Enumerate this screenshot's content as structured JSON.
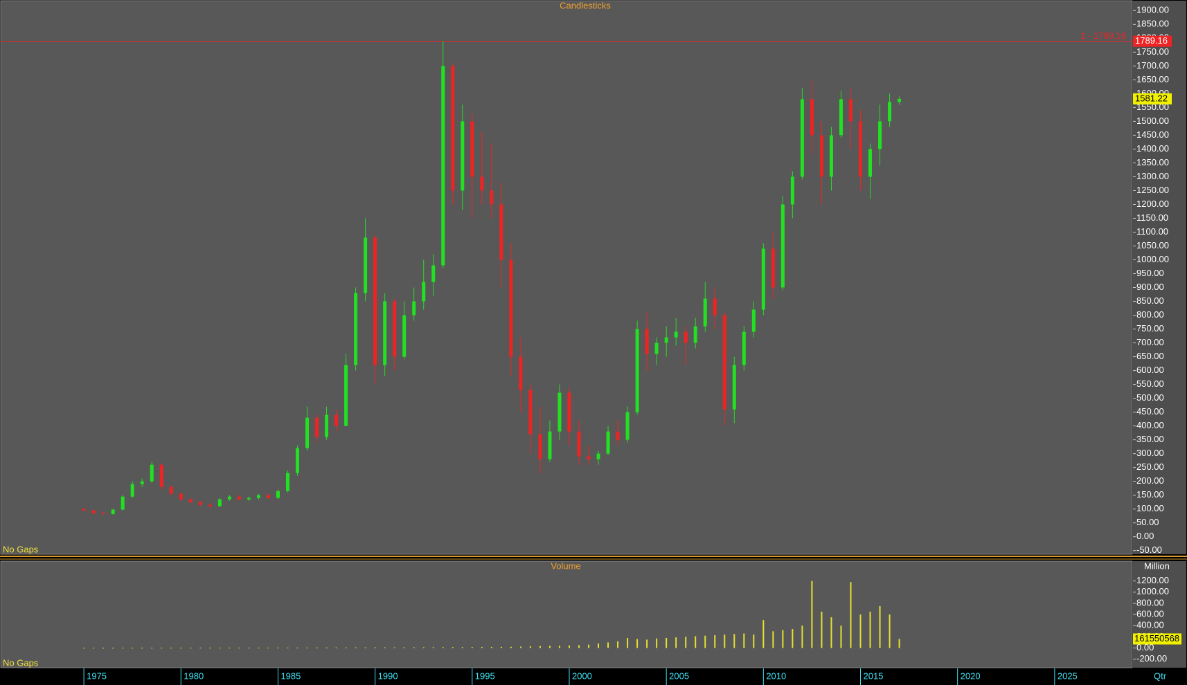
{
  "x_axis_unit": "Qtr",
  "chart_data": [
    {
      "type": "candlestick",
      "title": "Candlesticks",
      "note": "No Gaps",
      "colors": {
        "up": "#22e022",
        "down": "#ee2424"
      },
      "x": [
        1975.0,
        1975.5,
        1976.0,
        1976.5,
        1977.0,
        1977.5,
        1978.0,
        1978.5,
        1979.0,
        1979.5,
        1980.0,
        1980.5,
        1981.0,
        1981.5,
        1982.0,
        1982.5,
        1983.0,
        1983.5,
        1984.0,
        1984.5,
        1985.0,
        1985.5,
        1986.0,
        1986.5,
        1987.0,
        1987.5,
        1988.0,
        1988.5,
        1989.0,
        1989.5,
        1990.0,
        1990.5,
        1991.0,
        1991.5,
        1992.0,
        1992.5,
        1993.0,
        1993.5,
        1994.0,
        1994.5,
        1995.0,
        1995.5,
        1996.0,
        1996.5,
        1997.0,
        1997.5,
        1998.0,
        1998.5,
        1999.0,
        1999.5,
        2000.0,
        2000.5,
        2001.0,
        2001.5,
        2002.0,
        2002.5,
        2003.0,
        2003.5,
        2004.0,
        2004.5,
        2005.0,
        2005.5,
        2006.0,
        2006.5,
        2007.0,
        2007.5,
        2008.0,
        2008.5,
        2009.0,
        2009.5,
        2010.0,
        2010.5,
        2011.0,
        2011.5,
        2012.0,
        2012.5,
        2013.0,
        2013.5,
        2014.0,
        2014.5,
        2015.0,
        2015.5,
        2016.0,
        2016.5,
        2017.0
      ],
      "open": [
        100,
        95,
        85,
        82,
        98,
        145,
        190,
        200,
        260,
        180,
        155,
        135,
        125,
        115,
        110,
        135,
        145,
        135,
        140,
        150,
        140,
        165,
        230,
        320,
        430,
        360,
        440,
        400,
        620,
        880,
        1080,
        620,
        850,
        650,
        800,
        850,
        920,
        980,
        1700,
        1250,
        1500,
        1300,
        1250,
        1200,
        1000,
        650,
        530,
        370,
        280,
        380,
        520,
        380,
        290,
        280,
        300,
        380,
        350,
        450,
        750,
        660,
        700,
        720,
        740,
        700,
        760,
        860,
        800,
        460,
        620,
        740,
        820,
        1040,
        900,
        1200,
        1300,
        1580,
        1450,
        1300,
        1450,
        1580,
        1500,
        1300,
        1400,
        1500,
        1570
      ],
      "high": [
        105,
        98,
        90,
        100,
        150,
        200,
        210,
        270,
        265,
        185,
        160,
        140,
        130,
        120,
        140,
        150,
        150,
        145,
        155,
        155,
        170,
        240,
        330,
        470,
        440,
        470,
        460,
        660,
        900,
        1150,
        1090,
        880,
        860,
        850,
        900,
        1000,
        1020,
        1789.16,
        1710,
        1560,
        1530,
        1460,
        1420,
        1280,
        1060,
        720,
        550,
        470,
        420,
        550,
        540,
        420,
        330,
        310,
        400,
        420,
        470,
        780,
        810,
        720,
        760,
        790,
        760,
        790,
        920,
        900,
        810,
        650,
        760,
        850,
        1060,
        1100,
        1230,
        1320,
        1620,
        1650,
        1500,
        1480,
        1610,
        1620,
        1540,
        1420,
        1560,
        1600,
        1590
      ],
      "low": [
        90,
        80,
        78,
        80,
        95,
        140,
        180,
        195,
        170,
        150,
        130,
        120,
        110,
        105,
        108,
        130,
        130,
        130,
        135,
        135,
        135,
        160,
        220,
        310,
        340,
        350,
        380,
        400,
        600,
        850,
        550,
        580,
        600,
        640,
        780,
        820,
        870,
        970,
        1200,
        1180,
        1150,
        1200,
        1150,
        900,
        580,
        450,
        300,
        230,
        270,
        350,
        330,
        260,
        260,
        260,
        295,
        330,
        340,
        440,
        600,
        620,
        650,
        690,
        620,
        680,
        740,
        750,
        400,
        410,
        600,
        720,
        800,
        860,
        890,
        1150,
        1290,
        1380,
        1200,
        1250,
        1440,
        1400,
        1250,
        1220,
        1340,
        1480,
        1560
      ],
      "close": [
        95,
        85,
        82,
        98,
        145,
        190,
        200,
        260,
        180,
        155,
        135,
        125,
        115,
        110,
        135,
        145,
        135,
        140,
        150,
        140,
        165,
        230,
        320,
        430,
        360,
        440,
        400,
        620,
        880,
        1080,
        620,
        850,
        650,
        800,
        850,
        920,
        980,
        1700,
        1250,
        1500,
        1300,
        1250,
        1200,
        1000,
        650,
        530,
        370,
        280,
        380,
        520,
        380,
        290,
        280,
        300,
        380,
        350,
        450,
        750,
        660,
        700,
        720,
        740,
        700,
        760,
        860,
        800,
        460,
        620,
        740,
        820,
        1040,
        900,
        1200,
        1300,
        1580,
        1450,
        1300,
        1450,
        1580,
        1500,
        1300,
        1400,
        1500,
        1570,
        1581.22
      ],
      "xlim": [
        1970.68,
        2029.0
      ],
      "xticks": [
        1975,
        1980,
        1985,
        1990,
        1995,
        2000,
        2005,
        2010,
        2015,
        2020,
        2025
      ],
      "ylim": [
        -60.7,
        1938.2
      ],
      "yticks": [
        {
          "value": -50,
          "label": "-50.00"
        },
        {
          "value": 0,
          "label": "0.00"
        },
        {
          "value": 50,
          "label": "50.00"
        },
        {
          "value": 100,
          "label": "100.00"
        },
        {
          "value": 150,
          "label": "150.00"
        },
        {
          "value": 200,
          "label": "200.00"
        },
        {
          "value": 250,
          "label": "250.00"
        },
        {
          "value": 300,
          "label": "300.00"
        },
        {
          "value": 350,
          "label": "350.00"
        },
        {
          "value": 400,
          "label": "400.00"
        },
        {
          "value": 450,
          "label": "450.00"
        },
        {
          "value": 500,
          "label": "500.00"
        },
        {
          "value": 550,
          "label": "550.00"
        },
        {
          "value": 600,
          "label": "600.00"
        },
        {
          "value": 650,
          "label": "650.00"
        },
        {
          "value": 700,
          "label": "700.00"
        },
        {
          "value": 750,
          "label": "750.00"
        },
        {
          "value": 800,
          "label": "800.00"
        },
        {
          "value": 850,
          "label": "850.00"
        },
        {
          "value": 900,
          "label": "900.00"
        },
        {
          "value": 950,
          "label": "950.00"
        },
        {
          "value": 1000,
          "label": "1000.00"
        },
        {
          "value": 1050,
          "label": "1050.00"
        },
        {
          "value": 1100,
          "label": "1100.00"
        },
        {
          "value": 1150,
          "label": "1150.00"
        },
        {
          "value": 1200,
          "label": "1200.00"
        },
        {
          "value": 1250,
          "label": "1250.00"
        },
        {
          "value": 1300,
          "label": "1300.00"
        },
        {
          "value": 1350,
          "label": "1350.00"
        },
        {
          "value": 1400,
          "label": "1400.00"
        },
        {
          "value": 1450,
          "label": "1450.00"
        },
        {
          "value": 1500,
          "label": "1500.00"
        },
        {
          "value": 1550,
          "label": "1550.00"
        },
        {
          "value": 1600,
          "label": "1600.00"
        },
        {
          "value": 1650,
          "label": "1650.00"
        },
        {
          "value": 1700,
          "label": "1700.00"
        },
        {
          "value": 1750,
          "label": "1750.00"
        },
        {
          "value": 1800,
          "label": "1800.00"
        },
        {
          "value": 1850,
          "label": "1850.00"
        },
        {
          "value": 1900,
          "label": "1900.00"
        }
      ],
      "reference_lines": [
        {
          "label": "1 - 1789.16",
          "value": 1789.16,
          "color": "#ee2424"
        }
      ]
    },
    {
      "type": "bar",
      "title": "Volume",
      "note": "No Gaps",
      "unit": "Million",
      "color": "#e6e030",
      "values": [
        3,
        3,
        3,
        3,
        3,
        4,
        4,
        4,
        4,
        4,
        4,
        4,
        5,
        5,
        5,
        5,
        5,
        5,
        5,
        5,
        6,
        6,
        7,
        7,
        8,
        8,
        9,
        9,
        10,
        10,
        11,
        11,
        12,
        12,
        13,
        13,
        14,
        14,
        15,
        15,
        16,
        17,
        18,
        20,
        22,
        25,
        30,
        35,
        38,
        40,
        45,
        50,
        60,
        80,
        100,
        120,
        180,
        160,
        150,
        170,
        180,
        190,
        200,
        210,
        220,
        230,
        240,
        250,
        260,
        240,
        500,
        300,
        320,
        340,
        400,
        1200,
        650,
        550,
        400,
        1180,
        600,
        650,
        750,
        600,
        161.550568
      ],
      "value_labels": [
        null,
        null,
        null,
        null,
        null,
        null,
        null,
        null,
        null,
        null,
        null,
        null,
        null,
        null,
        null,
        null,
        null,
        null,
        null,
        null,
        null,
        null,
        null,
        null,
        null,
        null,
        null,
        null,
        null,
        null,
        null,
        null,
        null,
        null,
        null,
        null,
        null,
        null,
        null,
        null,
        null,
        null,
        null,
        null,
        null,
        null,
        null,
        null,
        null,
        null,
        null,
        null,
        null,
        null,
        null,
        null,
        null,
        null,
        null,
        null,
        null,
        null,
        null,
        null,
        null,
        null,
        null,
        null,
        null,
        null,
        null,
        null,
        null,
        null,
        null,
        null,
        null,
        null,
        null,
        null,
        null,
        null,
        null,
        null,
        "161550568"
      ],
      "ylim": [
        -353,
        1555
      ],
      "yticks": [
        {
          "value": -200,
          "label": "-200.00"
        },
        {
          "value": 0,
          "label": "0.00"
        },
        {
          "value": 200,
          "label": "200.00"
        },
        {
          "value": 400,
          "label": "400.00"
        },
        {
          "value": 600,
          "label": "600.00"
        },
        {
          "value": 800,
          "label": "800.00"
        },
        {
          "value": 1000,
          "label": "1000.00"
        },
        {
          "value": 1200,
          "label": "1200.00"
        }
      ]
    }
  ]
}
